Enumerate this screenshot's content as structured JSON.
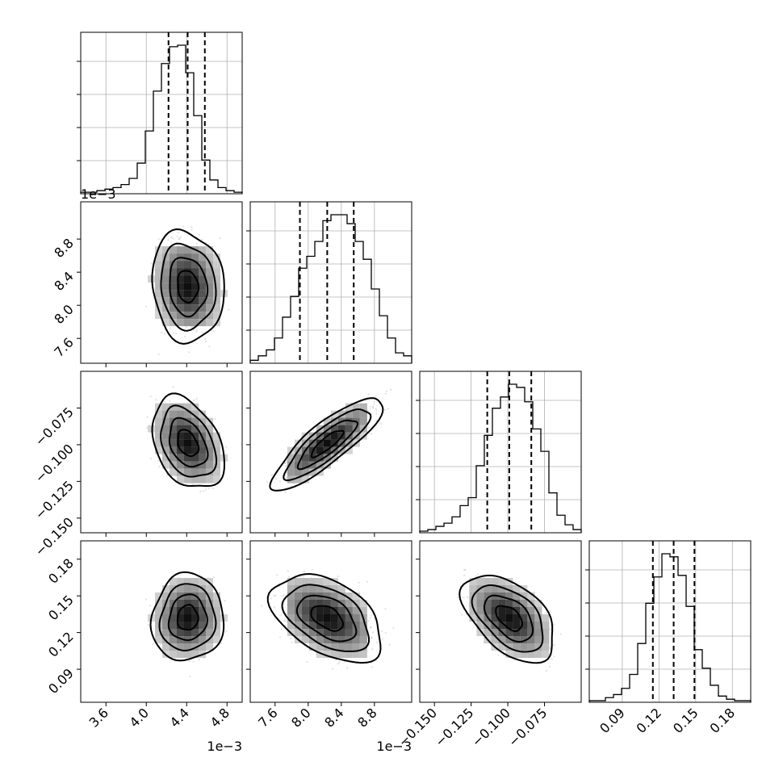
{
  "chart_data": {
    "type": "scatter",
    "subtype": "corner-plot",
    "title": "",
    "parameters": [
      {
        "range": [
          3.35,
          4.95
        ],
        "scale_note": "1e−3",
        "ticks": [
          "3.6",
          "4.0",
          "4.4",
          "4.8"
        ],
        "tick_values": [
          3.6,
          4.0,
          4.4,
          4.8
        ],
        "quantiles": [
          4.22,
          4.41,
          4.58
        ],
        "mean": 4.41,
        "sd": 0.17,
        "hist": [
          1,
          1,
          2,
          3,
          4,
          6,
          10,
          20,
          41,
          67,
          85,
          96,
          97,
          79,
          51,
          22,
          9,
          4,
          2,
          1
        ]
      },
      {
        "range": [
          7.3,
          9.25
        ],
        "scale_note": "1e−3",
        "ticks": [
          "7.6",
          "8.0",
          "8.4",
          "8.8"
        ],
        "tick_values": [
          7.6,
          8.0,
          8.4,
          8.8
        ],
        "quantiles": [
          7.9,
          8.23,
          8.55
        ],
        "mean": 8.23,
        "sd": 0.32,
        "hist": [
          2,
          5,
          9,
          17,
          31,
          45,
          64,
          72,
          82,
          96,
          100,
          100,
          94,
          82,
          70,
          50,
          32,
          17,
          7,
          5
        ]
      },
      {
        "range": [
          -0.16,
          -0.05
        ],
        "ticks": [
          "−0.150",
          "−0.125",
          "−0.100",
          "−0.075"
        ],
        "tick_values": [
          -0.15,
          -0.125,
          -0.1,
          -0.075
        ],
        "quantiles": [
          -0.114,
          -0.099,
          -0.084
        ],
        "mean": -0.099,
        "sd": 0.015,
        "hist": [
          1,
          2,
          4,
          6,
          10,
          17,
          22,
          42,
          61,
          78,
          85,
          93,
          91,
          82,
          65,
          51,
          25,
          11,
          5,
          2
        ]
      },
      {
        "range": [
          0.063,
          0.195
        ],
        "ticks": [
          "0.09",
          "0.12",
          "0.15",
          "0.18"
        ],
        "tick_values": [
          0.09,
          0.12,
          0.15,
          0.18
        ],
        "quantiles": [
          0.115,
          0.132,
          0.149
        ],
        "mean": 0.132,
        "sd": 0.017,
        "hist": [
          1,
          1,
          3,
          5,
          9,
          18,
          38,
          64,
          81,
          96,
          94,
          82,
          62,
          34,
          22,
          11,
          4,
          2,
          1,
          1
        ]
      }
    ],
    "correlations": {
      "1-0": -0.1,
      "2-0": -0.35,
      "2-1": 0.85,
      "3-0": 0.05,
      "3-1": -0.45,
      "3-2": -0.5
    },
    "xlabel_offsets": [
      "1e−3",
      "1e−3"
    ],
    "ylabel_offsets": [
      "1e−3"
    ],
    "grid": true,
    "legend": "none"
  }
}
